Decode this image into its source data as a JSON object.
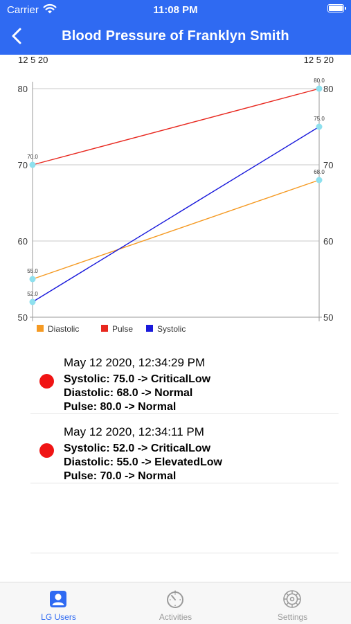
{
  "status_bar": {
    "carrier": "Carrier",
    "time": "11:08 PM"
  },
  "nav": {
    "title": "Blood Pressure of Franklyn Smith",
    "back_icon": "chevron-left-icon"
  },
  "colors": {
    "accent": "#2f6af2",
    "diastolic": "#f59a23",
    "pulse": "#e8281f",
    "systolic": "#1a1adb",
    "point": "#8ee0ee",
    "alert": "#f01414",
    "tab_active": "#2f6af2",
    "tab_inactive": "#9a9a9a"
  },
  "chart_data": {
    "type": "line",
    "x": [
      "12 5 20",
      "12 5 20"
    ],
    "y_ticks": [
      50,
      60,
      70,
      80
    ],
    "ylim": [
      50,
      80
    ],
    "grid": true,
    "legend": "bottom-left",
    "series": [
      {
        "name": "Diastolic",
        "values": [
          55.0,
          68.0
        ],
        "point_labels": [
          "55.0",
          "68.0"
        ]
      },
      {
        "name": "Pulse",
        "values": [
          70.0,
          80.0
        ],
        "point_labels": [
          "70.0",
          "80.0"
        ]
      },
      {
        "name": "Systolic",
        "values": [
          52.0,
          75.0
        ],
        "point_labels": [
          "52.0",
          "75.0"
        ]
      }
    ]
  },
  "entries": [
    {
      "date": "May 12 2020, 12:34:29 PM",
      "systolic": "Systolic: 75.0 -> CriticalLow",
      "diastolic": "Diastolic: 68.0 -> Normal",
      "pulse": "Pulse: 80.0 -> Normal"
    },
    {
      "date": "May 12 2020, 12:34:11 PM",
      "systolic": "Systolic: 52.0 -> CriticalLow",
      "diastolic": "Diastolic: 55.0 -> ElevatedLow",
      "pulse": "Pulse: 70.0 -> Normal"
    }
  ],
  "tabs": [
    {
      "label": "LG Users",
      "icon": "user-icon",
      "active": true
    },
    {
      "label": "Activities",
      "icon": "stopwatch-icon",
      "active": false
    },
    {
      "label": "Settings",
      "icon": "gear-icon",
      "active": false
    }
  ]
}
